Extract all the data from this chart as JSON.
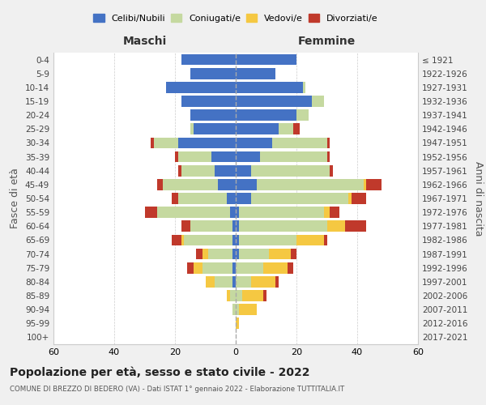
{
  "age_groups": [
    "0-4",
    "5-9",
    "10-14",
    "15-19",
    "20-24",
    "25-29",
    "30-34",
    "35-39",
    "40-44",
    "45-49",
    "50-54",
    "55-59",
    "60-64",
    "65-69",
    "70-74",
    "75-79",
    "80-84",
    "85-89",
    "90-94",
    "95-99",
    "100+"
  ],
  "birth_years": [
    "2017-2021",
    "2012-2016",
    "2007-2011",
    "2002-2006",
    "1997-2001",
    "1992-1996",
    "1987-1991",
    "1982-1986",
    "1977-1981",
    "1972-1976",
    "1967-1971",
    "1962-1966",
    "1957-1961",
    "1952-1956",
    "1947-1951",
    "1942-1946",
    "1937-1941",
    "1932-1936",
    "1927-1931",
    "1922-1926",
    "≤ 1921"
  ],
  "male": {
    "celibi": [
      18,
      15,
      23,
      18,
      15,
      14,
      19,
      8,
      7,
      6,
      3,
      2,
      1,
      1,
      1,
      1,
      1,
      0,
      0,
      0,
      0
    ],
    "coniugati": [
      0,
      0,
      0,
      0,
      0,
      1,
      8,
      11,
      11,
      18,
      16,
      24,
      14,
      16,
      8,
      10,
      6,
      2,
      1,
      0,
      0
    ],
    "vedovi": [
      0,
      0,
      0,
      0,
      0,
      0,
      0,
      0,
      0,
      0,
      0,
      0,
      0,
      1,
      2,
      3,
      3,
      1,
      0,
      0,
      0
    ],
    "divorziati": [
      0,
      0,
      0,
      0,
      0,
      0,
      1,
      1,
      1,
      2,
      2,
      4,
      3,
      3,
      2,
      2,
      0,
      0,
      0,
      0,
      0
    ]
  },
  "female": {
    "nubili": [
      20,
      13,
      22,
      25,
      20,
      14,
      12,
      8,
      5,
      7,
      5,
      1,
      1,
      1,
      1,
      0,
      0,
      0,
      0,
      0,
      0
    ],
    "coniugate": [
      0,
      0,
      1,
      4,
      4,
      5,
      18,
      22,
      26,
      35,
      32,
      28,
      29,
      19,
      10,
      9,
      5,
      2,
      1,
      0,
      0
    ],
    "vedove": [
      0,
      0,
      0,
      0,
      0,
      0,
      0,
      0,
      0,
      1,
      1,
      2,
      6,
      9,
      7,
      8,
      8,
      7,
      6,
      1,
      0
    ],
    "divorziate": [
      0,
      0,
      0,
      0,
      0,
      2,
      1,
      1,
      1,
      5,
      5,
      3,
      7,
      1,
      2,
      2,
      1,
      1,
      0,
      0,
      0
    ]
  },
  "colors": {
    "celibi": "#4472c4",
    "coniugati": "#c5d9a0",
    "vedovi": "#f5c842",
    "divorziati": "#c0392b"
  },
  "xlim": 60,
  "title": "Popolazione per età, sesso e stato civile - 2022",
  "subtitle": "COMUNE DI BREZZO DI BEDERO (VA) - Dati ISTAT 1° gennaio 2022 - Elaborazione TUTTITALIA.IT",
  "xlabel_left": "Maschi",
  "xlabel_right": "Femmine",
  "ylabel_left": "Fasce di età",
  "ylabel_right": "Anni di nascita",
  "bg_color": "#f0f0f0",
  "plot_bg_color": "#ffffff"
}
